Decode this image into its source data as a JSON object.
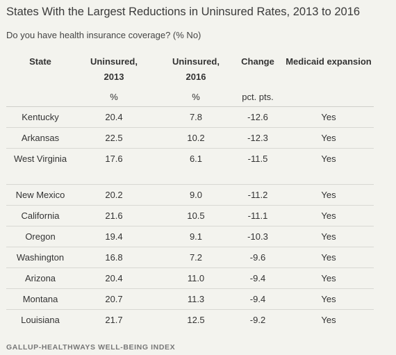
{
  "title": "States With the Largest Reductions in Uninsured Rates, 2013 to 2016",
  "subtitle": "Do you have health insurance coverage? (% No)",
  "columns": {
    "state": "State",
    "u2013": "Uninsured, 2013",
    "u2013_unit": "%",
    "u2016": "Uninsured, 2016",
    "u2016_unit": "%",
    "change": "Change",
    "change_unit": "pct. pts.",
    "medicaid": "Medicaid expansion"
  },
  "rows": [
    {
      "state": "Kentucky",
      "u2013": "20.4",
      "u2016": "7.8",
      "change": "-12.6",
      "medicaid": "Yes"
    },
    {
      "state": "Arkansas",
      "u2013": "22.5",
      "u2016": "10.2",
      "change": "-12.3",
      "medicaid": "Yes"
    },
    {
      "state": "West Virginia",
      "u2013": "17.6",
      "u2016": "6.1",
      "change": "-11.5",
      "medicaid": "Yes"
    },
    {
      "state": "New Mexico",
      "u2013": "20.2",
      "u2016": "9.0",
      "change": "-11.2",
      "medicaid": "Yes"
    },
    {
      "state": "California",
      "u2013": "21.6",
      "u2016": "10.5",
      "change": "-11.1",
      "medicaid": "Yes"
    },
    {
      "state": "Oregon",
      "u2013": "19.4",
      "u2016": "9.1",
      "change": "-10.3",
      "medicaid": "Yes"
    },
    {
      "state": "Washington",
      "u2013": "16.8",
      "u2016": "7.2",
      "change": "-9.6",
      "medicaid": "Yes"
    },
    {
      "state": "Arizona",
      "u2013": "20.4",
      "u2016": "11.0",
      "change": "-9.4",
      "medicaid": "Yes"
    },
    {
      "state": "Montana",
      "u2013": "20.7",
      "u2016": "11.3",
      "change": "-9.4",
      "medicaid": "Yes"
    },
    {
      "state": "Louisiana",
      "u2013": "21.7",
      "u2016": "12.5",
      "change": "-9.2",
      "medicaid": "Yes"
    }
  ],
  "footer": "GALLUP-HEALTHWAYS WELL-BEING INDEX"
}
